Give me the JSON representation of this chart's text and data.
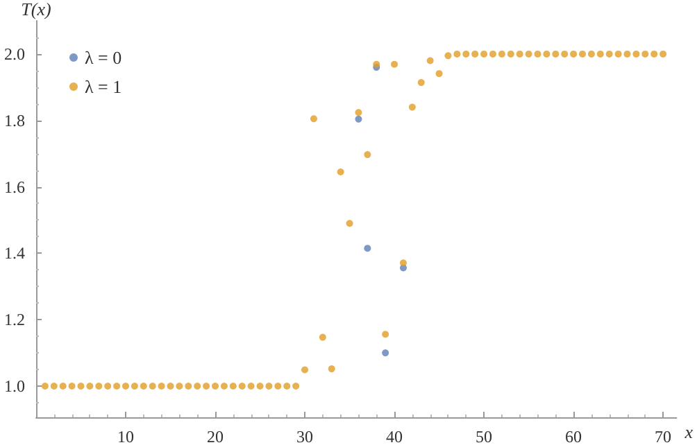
{
  "chart_data": {
    "type": "scatter",
    "xlabel": "x",
    "ylabel": "T(x)",
    "xlim": [
      0,
      71.5
    ],
    "ylim": [
      0.906,
      2.1
    ],
    "xticks": [
      10,
      20,
      30,
      40,
      50,
      60,
      70
    ],
    "yticks": [
      {
        "value": 1,
        "label": "1.0"
      },
      {
        "value": 1.2,
        "label": "1.2"
      },
      {
        "value": 1.4,
        "label": "1.4"
      },
      {
        "value": 1.6,
        "label": "1.6"
      },
      {
        "value": 1.8,
        "label": "1.8"
      },
      {
        "value": 2,
        "label": "2.0"
      }
    ],
    "x": [
      1,
      2,
      3,
      4,
      5,
      6,
      7,
      8,
      9,
      10,
      11,
      12,
      13,
      14,
      15,
      16,
      17,
      18,
      19,
      20,
      21,
      22,
      23,
      24,
      25,
      26,
      27,
      28,
      29,
      30,
      31,
      32,
      33,
      34,
      35,
      36,
      37,
      38,
      39,
      40,
      41,
      42,
      43,
      44,
      45,
      46,
      47,
      48,
      49,
      50,
      51,
      52,
      53,
      54,
      55,
      56,
      57,
      58,
      59,
      60,
      61,
      62,
      63,
      64,
      65,
      66,
      67,
      68,
      69,
      70
    ],
    "series": [
      {
        "name": "λ = 0",
        "color": "#5e81b5",
        "values": [
          null,
          null,
          null,
          null,
          null,
          null,
          null,
          null,
          null,
          null,
          null,
          null,
          null,
          null,
          null,
          null,
          null,
          null,
          null,
          null,
          null,
          null,
          null,
          null,
          null,
          null,
          null,
          null,
          null,
          null,
          null,
          null,
          null,
          null,
          null,
          1.804,
          1.415,
          1.96,
          1.1,
          null,
          1.356,
          null,
          null,
          null,
          null,
          null,
          null,
          null,
          null,
          null,
          null,
          null,
          null,
          null,
          null,
          null,
          null,
          null,
          null,
          null,
          null,
          null,
          null,
          null,
          null,
          null,
          null,
          null,
          null,
          null
        ]
      },
      {
        "name": "λ = 1",
        "color": "#e19c24",
        "values": [
          1,
          1,
          1,
          1,
          1,
          1,
          1,
          1,
          1,
          1,
          1,
          1,
          1,
          1,
          1,
          1,
          1,
          1,
          1,
          1,
          1,
          1,
          1,
          1,
          1,
          1,
          1,
          1,
          1,
          1.049,
          1.805,
          1.147,
          1.052,
          1.645,
          1.49,
          1.824,
          1.697,
          1.969,
          1.156,
          1.969,
          1.371,
          1.84,
          1.914,
          1.98,
          1.941,
          1.995,
          2,
          2,
          2,
          2,
          2,
          2,
          2,
          2,
          2,
          2,
          2,
          2,
          2,
          2,
          2,
          2,
          2,
          2,
          2,
          2,
          2,
          2,
          2,
          2
        ]
      }
    ],
    "marker": "circle",
    "legend": "top left",
    "grid": false
  }
}
